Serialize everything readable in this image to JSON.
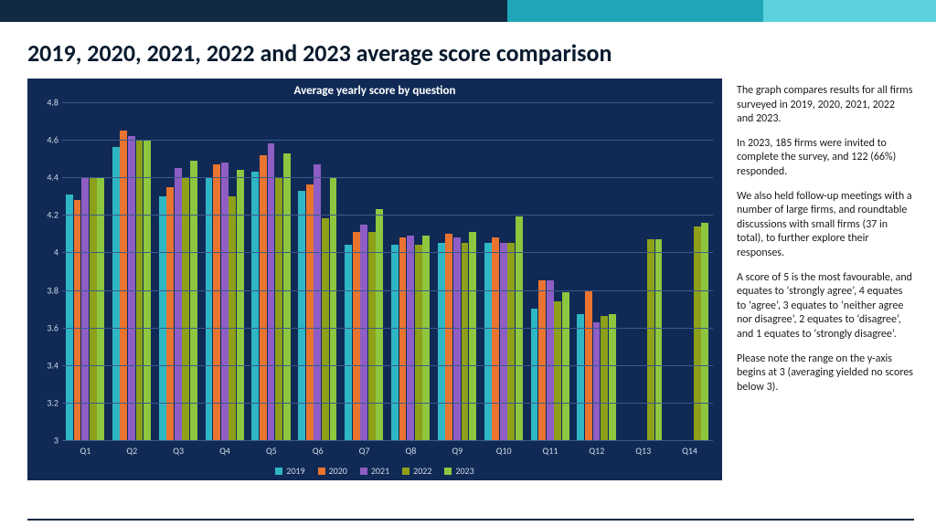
{
  "header_bar": {
    "seg1_color": "#102a43",
    "seg2_color": "#1fa6b8",
    "seg3_color": "#5bd1db"
  },
  "page_title": "2019, 2020, 2021, 2022 and 2023 average score comparison",
  "chart": {
    "type": "bar",
    "background_color": "#102a55",
    "grid_color": "#3a5a8a",
    "title": "Average yearly score by question",
    "title_fontsize": 13,
    "ylim": [
      3,
      4.8
    ],
    "ytick_step": 0.2,
    "yticks": [
      3,
      3.2,
      3.4,
      3.6,
      3.8,
      4,
      4.2,
      4.4,
      4.6,
      4.8
    ],
    "categories": [
      "Q1",
      "Q2",
      "Q3",
      "Q4",
      "Q5",
      "Q6",
      "Q7",
      "Q8",
      "Q9",
      "Q10",
      "Q11",
      "Q12",
      "Q13",
      "Q14"
    ],
    "series": [
      {
        "name": "2019",
        "color": "#2fb6c4",
        "values": [
          4.31,
          4.56,
          4.3,
          4.4,
          4.43,
          4.33,
          4.04,
          4.04,
          4.05,
          4.05,
          3.7,
          3.67,
          null,
          null
        ]
      },
      {
        "name": "2020",
        "color": "#e97430",
        "values": [
          4.28,
          4.65,
          4.35,
          4.47,
          4.52,
          4.36,
          4.11,
          4.08,
          4.1,
          4.08,
          3.85,
          3.8,
          null,
          null
        ]
      },
      {
        "name": "2021",
        "color": "#8e5ec5",
        "values": [
          4.4,
          4.62,
          4.45,
          4.48,
          4.58,
          4.47,
          4.15,
          4.09,
          4.08,
          4.05,
          3.85,
          3.63,
          null,
          null
        ]
      },
      {
        "name": "2022",
        "color": "#8ea019",
        "values": [
          4.4,
          4.6,
          4.4,
          4.3,
          4.4,
          4.18,
          4.11,
          4.04,
          4.05,
          4.05,
          3.74,
          3.66,
          4.07,
          4.14
        ]
      },
      {
        "name": "2023",
        "color": "#8dc63f",
        "values": [
          4.4,
          4.6,
          4.49,
          4.44,
          4.53,
          4.4,
          4.23,
          4.09,
          4.11,
          4.19,
          3.79,
          3.67,
          4.07,
          4.16
        ]
      }
    ],
    "legend_fontsize": 10,
    "axis_fontsize": 10,
    "bar_gap": 0.05
  },
  "sidebar": {
    "p1": "The graph  compares results for all firms surveyed in 2019, 2020, 2021, 2022 and 2023.",
    "p2": "In 2023, 185 firms were invited to complete the survey, and 122 (66%) responded.",
    "p3": "We also held follow-up meetings with a number of large firms, and roundtable discussions with small firms (37 in total), to further explore their responses.",
    "p4": "A score of 5 is the most favourable, and equates to ‘strongly agree’, 4 equates to ‘agree’, 3 equates to ‘neither agree nor disagree’, 2 equates to ‘disagree’, and 1 equates to ‘strongly disagree’.",
    "p5": "Please note the range on the y-axis begins at 3 (averaging yielded no scores below 3)."
  }
}
